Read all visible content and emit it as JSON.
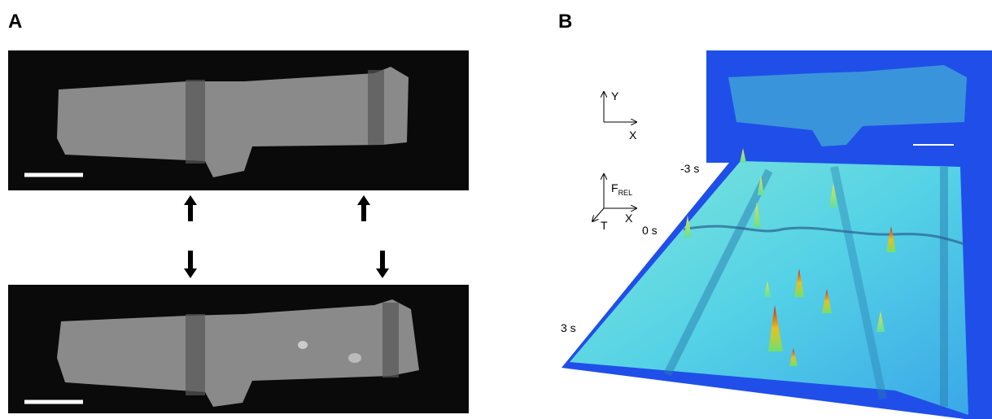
{
  "panels": [
    {
      "label": "A"
    },
    {
      "label": "B",
      "axes_top": {
        "y": "Y",
        "x": "X"
      },
      "axes_bottom": {
        "f": "F",
        "f_sub": "REL",
        "x": "X",
        "t": "T"
      },
      "time_labels": [
        "-3 s",
        "0 s",
        "3 s"
      ]
    }
  ]
}
